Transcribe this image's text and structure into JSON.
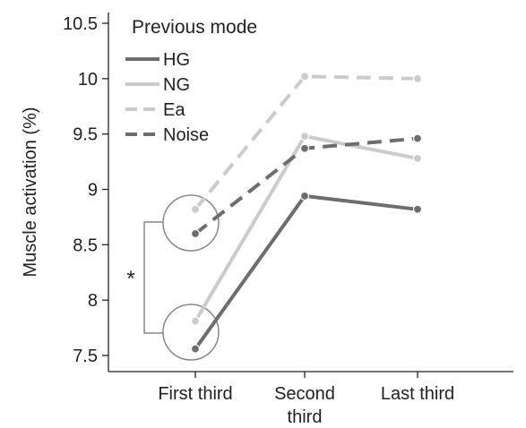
{
  "chart_data": {
    "type": "line",
    "ylabel": "Muscle activation (%)",
    "xlabel": "",
    "categories": [
      "First third",
      "Second third",
      "Last third"
    ],
    "category_lines": [
      [
        "First third"
      ],
      [
        "Second",
        "third"
      ],
      [
        "Last third"
      ]
    ],
    "ylim": [
      7.4,
      10.6
    ],
    "yticks": [
      "7.5",
      "8",
      "8.5",
      "9",
      "9.5",
      "10",
      "10.5"
    ],
    "legend": {
      "title": "Previous mode",
      "position": "top-left"
    },
    "series": [
      {
        "name": "HG",
        "values": [
          7.56,
          8.94,
          8.82
        ],
        "color": "#6d6d6d",
        "dashed": false
      },
      {
        "name": "NG",
        "values": [
          7.81,
          9.48,
          9.28
        ],
        "color": "#cbcbcb",
        "dashed": false
      },
      {
        "name": "Ea",
        "values": [
          8.82,
          10.02,
          10.0
        ],
        "color": "#cbcbcb",
        "dashed": true
      },
      {
        "name": "Noise",
        "values": [
          8.6,
          9.37,
          9.46
        ],
        "color": "#6d6d6d",
        "dashed": true
      }
    ],
    "annotation": {
      "text": "*",
      "type": "significance-bracket"
    }
  }
}
